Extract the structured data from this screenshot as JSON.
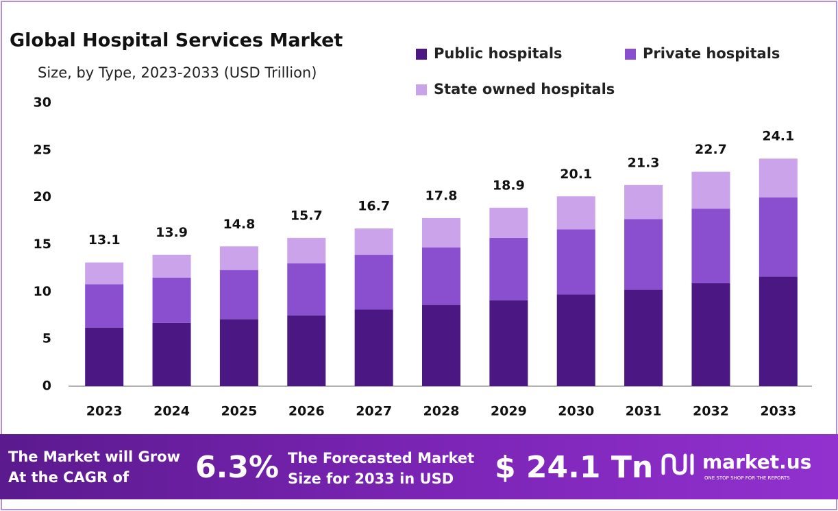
{
  "chart_data": {
    "type": "stacked_bar",
    "title": "Global Hospital Services Market",
    "subtitle": "Size, by Type, 2023-2033 (USD Trillion)",
    "categories": [
      "2023",
      "2024",
      "2025",
      "2026",
      "2027",
      "2028",
      "2029",
      "2030",
      "2031",
      "2032",
      "2033"
    ],
    "series": [
      {
        "name": "Public hospitals",
        "color": "#4b1782",
        "values": [
          6.2,
          6.7,
          7.1,
          7.5,
          8.1,
          8.6,
          9.1,
          9.7,
          10.2,
          10.9,
          11.6
        ]
      },
      {
        "name": "Private hospitals",
        "color": "#8a4fcf",
        "values": [
          4.6,
          4.8,
          5.2,
          5.5,
          5.8,
          6.1,
          6.6,
          6.9,
          7.5,
          7.9,
          8.4
        ]
      },
      {
        "name": "State owned hospitals",
        "color": "#caa3ea",
        "values": [
          2.3,
          2.4,
          2.5,
          2.7,
          2.8,
          3.1,
          3.2,
          3.5,
          3.6,
          3.9,
          4.1
        ]
      }
    ],
    "totals": [
      13.1,
      13.9,
      14.8,
      15.7,
      16.7,
      17.8,
      18.9,
      20.1,
      21.3,
      22.7,
      24.1
    ],
    "ylim": [
      0,
      30
    ],
    "yticks": [
      0,
      5,
      10,
      15,
      20,
      25,
      30
    ],
    "grid": false
  },
  "banner": {
    "line1": "The Market will Grow",
    "line2": "At the CAGR of",
    "cagr": "6.3%",
    "line3": "The Forecasted Market",
    "line4": "Size for 2033 in USD",
    "size": "$ 24.1 Tn",
    "brand": "market.us",
    "tagline": "ONE STOP SHOP FOR THE REPORTS"
  }
}
